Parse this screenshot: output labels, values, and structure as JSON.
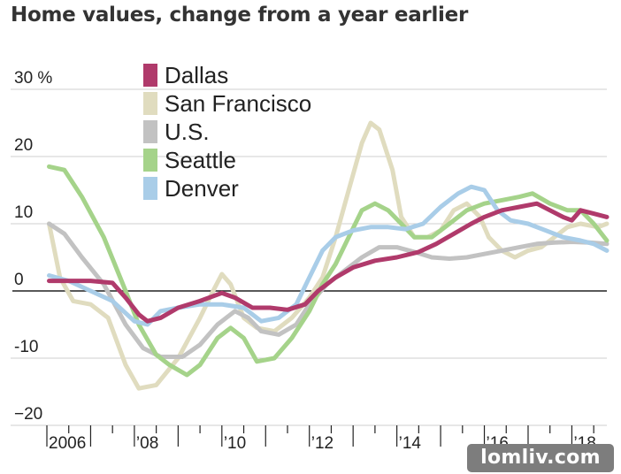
{
  "chart_data": {
    "type": "line",
    "title": "Home values, change from a year earlier",
    "xlabel": "",
    "ylabel": "",
    "unit": "%",
    "ylim": [
      -20,
      30
    ],
    "xlim": [
      2006,
      2018.8
    ],
    "y_ticks": [
      {
        "value": 30,
        "label": "30 %"
      },
      {
        "value": 20,
        "label": "20"
      },
      {
        "value": 10,
        "label": "10"
      },
      {
        "value": 0,
        "label": "0"
      },
      {
        "value": -10,
        "label": "-10"
      },
      {
        "value": -20,
        "label": "−20"
      }
    ],
    "x_ticks": [
      {
        "value": 2006,
        "label": "2006"
      },
      {
        "value": 2008,
        "label": "’08"
      },
      {
        "value": 2010,
        "label": "’10"
      },
      {
        "value": 2012,
        "label": "’12"
      },
      {
        "value": 2014,
        "label": "’14"
      },
      {
        "value": 2016,
        "label": "’16"
      },
      {
        "value": 2018,
        "label": "’18"
      }
    ],
    "grid": "horizontal",
    "legend_position": "top-left",
    "series": [
      {
        "name": "San Francisco",
        "color": "#e0dcbf",
        "points": [
          [
            2006.05,
            10
          ],
          [
            2006.3,
            2
          ],
          [
            2006.6,
            -1.5
          ],
          [
            2007,
            -2
          ],
          [
            2007.4,
            -4
          ],
          [
            2007.8,
            -11
          ],
          [
            2008.1,
            -14.5
          ],
          [
            2008.5,
            -14
          ],
          [
            2009,
            -10
          ],
          [
            2009.5,
            -4
          ],
          [
            2009.8,
            0
          ],
          [
            2010.0,
            2.5
          ],
          [
            2010.2,
            1
          ],
          [
            2010.5,
            -4
          ],
          [
            2010.8,
            -5.5
          ],
          [
            2011.2,
            -6
          ],
          [
            2011.6,
            -4
          ],
          [
            2012,
            -1
          ],
          [
            2012.3,
            2
          ],
          [
            2012.6,
            8
          ],
          [
            2012.9,
            15
          ],
          [
            2013.2,
            22
          ],
          [
            2013.4,
            25
          ],
          [
            2013.6,
            24
          ],
          [
            2013.9,
            18
          ],
          [
            2014.1,
            11
          ],
          [
            2014.4,
            8
          ],
          [
            2014.7,
            8
          ],
          [
            2015,
            9
          ],
          [
            2015.3,
            12
          ],
          [
            2015.6,
            13
          ],
          [
            2015.9,
            11
          ],
          [
            2016.1,
            8
          ],
          [
            2016.4,
            6
          ],
          [
            2016.7,
            5
          ],
          [
            2017,
            6
          ],
          [
            2017.3,
            6.5
          ],
          [
            2017.6,
            8
          ],
          [
            2017.9,
            9.5
          ],
          [
            2018.2,
            10
          ],
          [
            2018.6,
            9.5
          ],
          [
            2018.8,
            10
          ]
        ]
      },
      {
        "name": "U.S.",
        "color": "#c2c2c2",
        "points": [
          [
            2006.05,
            10
          ],
          [
            2006.4,
            8.5
          ],
          [
            2006.8,
            5
          ],
          [
            2007.3,
            1
          ],
          [
            2007.8,
            -5
          ],
          [
            2008.2,
            -8.5
          ],
          [
            2008.6,
            -9.8
          ],
          [
            2009.1,
            -9.8
          ],
          [
            2009.5,
            -8
          ],
          [
            2009.9,
            -5
          ],
          [
            2010.3,
            -3
          ],
          [
            2010.6,
            -4
          ],
          [
            2010.9,
            -6
          ],
          [
            2011.3,
            -6.5
          ],
          [
            2011.7,
            -5
          ],
          [
            2012,
            -2
          ],
          [
            2012.4,
            1
          ],
          [
            2012.8,
            3
          ],
          [
            2013.2,
            5
          ],
          [
            2013.6,
            6.5
          ],
          [
            2014,
            6.5
          ],
          [
            2014.4,
            5.8
          ],
          [
            2014.8,
            5
          ],
          [
            2015.2,
            4.8
          ],
          [
            2015.6,
            5
          ],
          [
            2016,
            5.5
          ],
          [
            2016.4,
            6
          ],
          [
            2016.8,
            6.5
          ],
          [
            2017.2,
            7
          ],
          [
            2017.6,
            7.2
          ],
          [
            2018,
            7.3
          ],
          [
            2018.4,
            7.2
          ],
          [
            2018.8,
            7
          ]
        ]
      },
      {
        "name": "Seattle",
        "color": "#a5d38a",
        "points": [
          [
            2006.05,
            18.5
          ],
          [
            2006.4,
            18
          ],
          [
            2006.8,
            14
          ],
          [
            2007.3,
            8
          ],
          [
            2007.8,
            0
          ],
          [
            2008.1,
            -5
          ],
          [
            2008.5,
            -9.5
          ],
          [
            2008.8,
            -11
          ],
          [
            2009.2,
            -12.5
          ],
          [
            2009.5,
            -11
          ],
          [
            2009.9,
            -7
          ],
          [
            2010.2,
            -5.5
          ],
          [
            2010.5,
            -7
          ],
          [
            2010.8,
            -10.5
          ],
          [
            2011.2,
            -10
          ],
          [
            2011.6,
            -7
          ],
          [
            2012,
            -3
          ],
          [
            2012.3,
            1
          ],
          [
            2012.6,
            4
          ],
          [
            2012.9,
            8
          ],
          [
            2013.2,
            12
          ],
          [
            2013.5,
            13
          ],
          [
            2013.8,
            12
          ],
          [
            2014.1,
            10
          ],
          [
            2014.4,
            8
          ],
          [
            2014.8,
            8
          ],
          [
            2015.2,
            10
          ],
          [
            2015.6,
            12
          ],
          [
            2016,
            13
          ],
          [
            2016.4,
            13.5
          ],
          [
            2016.8,
            14
          ],
          [
            2017.1,
            14.5
          ],
          [
            2017.5,
            13
          ],
          [
            2017.9,
            12
          ],
          [
            2018.2,
            12
          ],
          [
            2018.5,
            10
          ],
          [
            2018.8,
            7.5
          ]
        ]
      },
      {
        "name": "Denver",
        "color": "#a9cde8",
        "points": [
          [
            2006.05,
            2.3
          ],
          [
            2006.5,
            1.5
          ],
          [
            2007,
            0
          ],
          [
            2007.5,
            -1.5
          ],
          [
            2008,
            -4.5
          ],
          [
            2008.3,
            -5
          ],
          [
            2008.6,
            -3
          ],
          [
            2009,
            -2.5
          ],
          [
            2009.5,
            -2
          ],
          [
            2010,
            -2
          ],
          [
            2010.5,
            -2.5
          ],
          [
            2010.9,
            -4.5
          ],
          [
            2011.3,
            -4
          ],
          [
            2011.7,
            -2
          ],
          [
            2012,
            2
          ],
          [
            2012.3,
            6
          ],
          [
            2012.6,
            8
          ],
          [
            2013,
            9
          ],
          [
            2013.4,
            9.5
          ],
          [
            2013.8,
            9.5
          ],
          [
            2014.2,
            9.2
          ],
          [
            2014.6,
            10
          ],
          [
            2015,
            12.5
          ],
          [
            2015.4,
            14.5
          ],
          [
            2015.7,
            15.5
          ],
          [
            2016,
            15
          ],
          [
            2016.3,
            12
          ],
          [
            2016.6,
            10.5
          ],
          [
            2017,
            10
          ],
          [
            2017.4,
            9
          ],
          [
            2017.8,
            8
          ],
          [
            2018.2,
            7.5
          ],
          [
            2018.5,
            7
          ],
          [
            2018.8,
            6
          ]
        ]
      },
      {
        "name": "Dallas",
        "color": "#b03a6b",
        "points": [
          [
            2006.05,
            1.5
          ],
          [
            2006.5,
            1.5
          ],
          [
            2007,
            1.5
          ],
          [
            2007.5,
            1.2
          ],
          [
            2007.8,
            -1
          ],
          [
            2008.1,
            -3.5
          ],
          [
            2008.3,
            -4.5
          ],
          [
            2008.6,
            -4
          ],
          [
            2009,
            -2.5
          ],
          [
            2009.5,
            -1.5
          ],
          [
            2010,
            -0.3
          ],
          [
            2010.3,
            -1
          ],
          [
            2010.7,
            -2.5
          ],
          [
            2011.1,
            -2.5
          ],
          [
            2011.5,
            -2.8
          ],
          [
            2011.9,
            -2
          ],
          [
            2012.2,
            0
          ],
          [
            2012.6,
            2
          ],
          [
            2013,
            3.5
          ],
          [
            2013.5,
            4.5
          ],
          [
            2014,
            5
          ],
          [
            2014.5,
            5.8
          ],
          [
            2014.9,
            7
          ],
          [
            2015.3,
            8.5
          ],
          [
            2015.7,
            10
          ],
          [
            2016,
            11
          ],
          [
            2016.4,
            12
          ],
          [
            2016.8,
            12.5
          ],
          [
            2017.2,
            13
          ],
          [
            2017.5,
            12
          ],
          [
            2017.8,
            11
          ],
          [
            2018,
            10.5
          ],
          [
            2018.2,
            12
          ],
          [
            2018.5,
            11.5
          ],
          [
            2018.8,
            11
          ]
        ]
      }
    ],
    "legend": [
      {
        "name": "Dallas",
        "color": "#b03a6b"
      },
      {
        "name": "San Francisco",
        "color": "#e0dcbf"
      },
      {
        "name": "U.S.",
        "color": "#c2c2c2"
      },
      {
        "name": "Seattle",
        "color": "#a5d38a"
      },
      {
        "name": "Denver",
        "color": "#a9cde8"
      }
    ]
  },
  "watermark": "lomliv.com"
}
